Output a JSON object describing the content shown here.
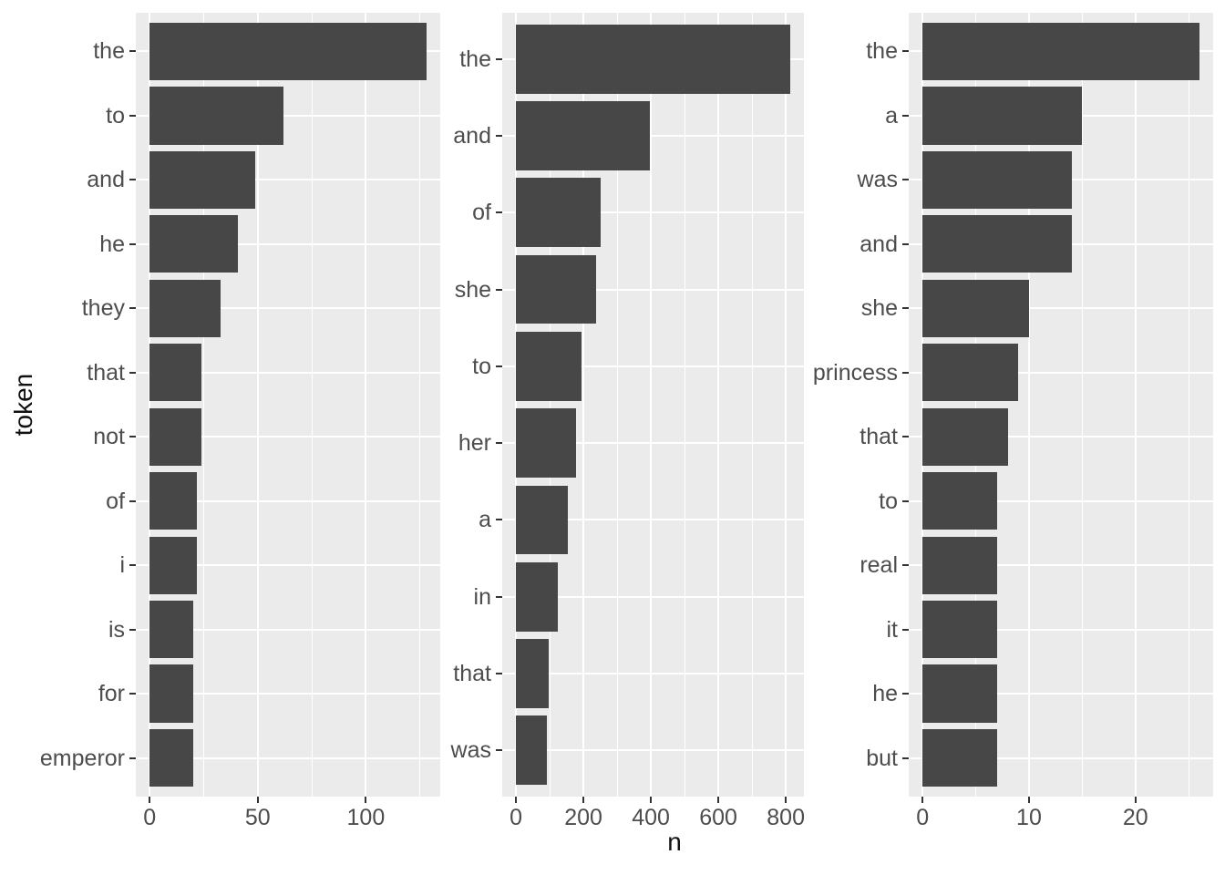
{
  "figure": {
    "x_axis_title": "n",
    "y_axis_title": "token"
  },
  "style": {
    "bar_fill": "#474747",
    "panel_background": "#EBEBEB",
    "grid_color": "#FFFFFF",
    "tick_mark_color": "#333333",
    "tick_label_color": "#4D4D4D",
    "axis_title_color": "#111111",
    "figure_background": "#FFFFFF"
  },
  "chart_data": [
    {
      "type": "bar",
      "orientation": "horizontal",
      "panel": "facet-1",
      "xlabel": "n",
      "ylabel": "token",
      "categories": [
        "the",
        "to",
        "and",
        "he",
        "they",
        "that",
        "not",
        "of",
        "i",
        "is",
        "for",
        "emperor"
      ],
      "values": [
        128,
        62,
        49,
        41,
        33,
        24,
        24,
        22,
        22,
        20,
        20,
        20
      ],
      "x_ticks": [
        0,
        50,
        100
      ],
      "x_minor_ticks": [
        25,
        75,
        125
      ],
      "xlim": [
        -6.4,
        134.4
      ],
      "grid": true,
      "legend": "none"
    },
    {
      "type": "bar",
      "orientation": "horizontal",
      "panel": "facet-2",
      "xlabel": "n",
      "ylabel": "token",
      "categories": [
        "the",
        "and",
        "of",
        "she",
        "to",
        "her",
        "a",
        "in",
        "that",
        "was"
      ],
      "values": [
        813,
        398,
        251,
        238,
        195,
        178,
        154,
        124,
        97,
        92
      ],
      "x_ticks": [
        0,
        200,
        400,
        600,
        800
      ],
      "x_minor_ticks": [
        100,
        300,
        500,
        700
      ],
      "xlim": [
        -40.65,
        853.65
      ],
      "grid": true,
      "legend": "none"
    },
    {
      "type": "bar",
      "orientation": "horizontal",
      "panel": "facet-3",
      "xlabel": "n",
      "ylabel": "token",
      "categories": [
        "the",
        "a",
        "was",
        "and",
        "she",
        "princess",
        "that",
        "to",
        "real",
        "it",
        "he",
        "but"
      ],
      "values": [
        26,
        15,
        14,
        14,
        10,
        9,
        8,
        7,
        7,
        7,
        7,
        7
      ],
      "x_ticks": [
        0,
        10,
        20
      ],
      "x_minor_ticks": [
        5,
        15,
        25
      ],
      "xlim": [
        -1.3,
        27.3
      ],
      "grid": true,
      "legend": "none"
    }
  ]
}
